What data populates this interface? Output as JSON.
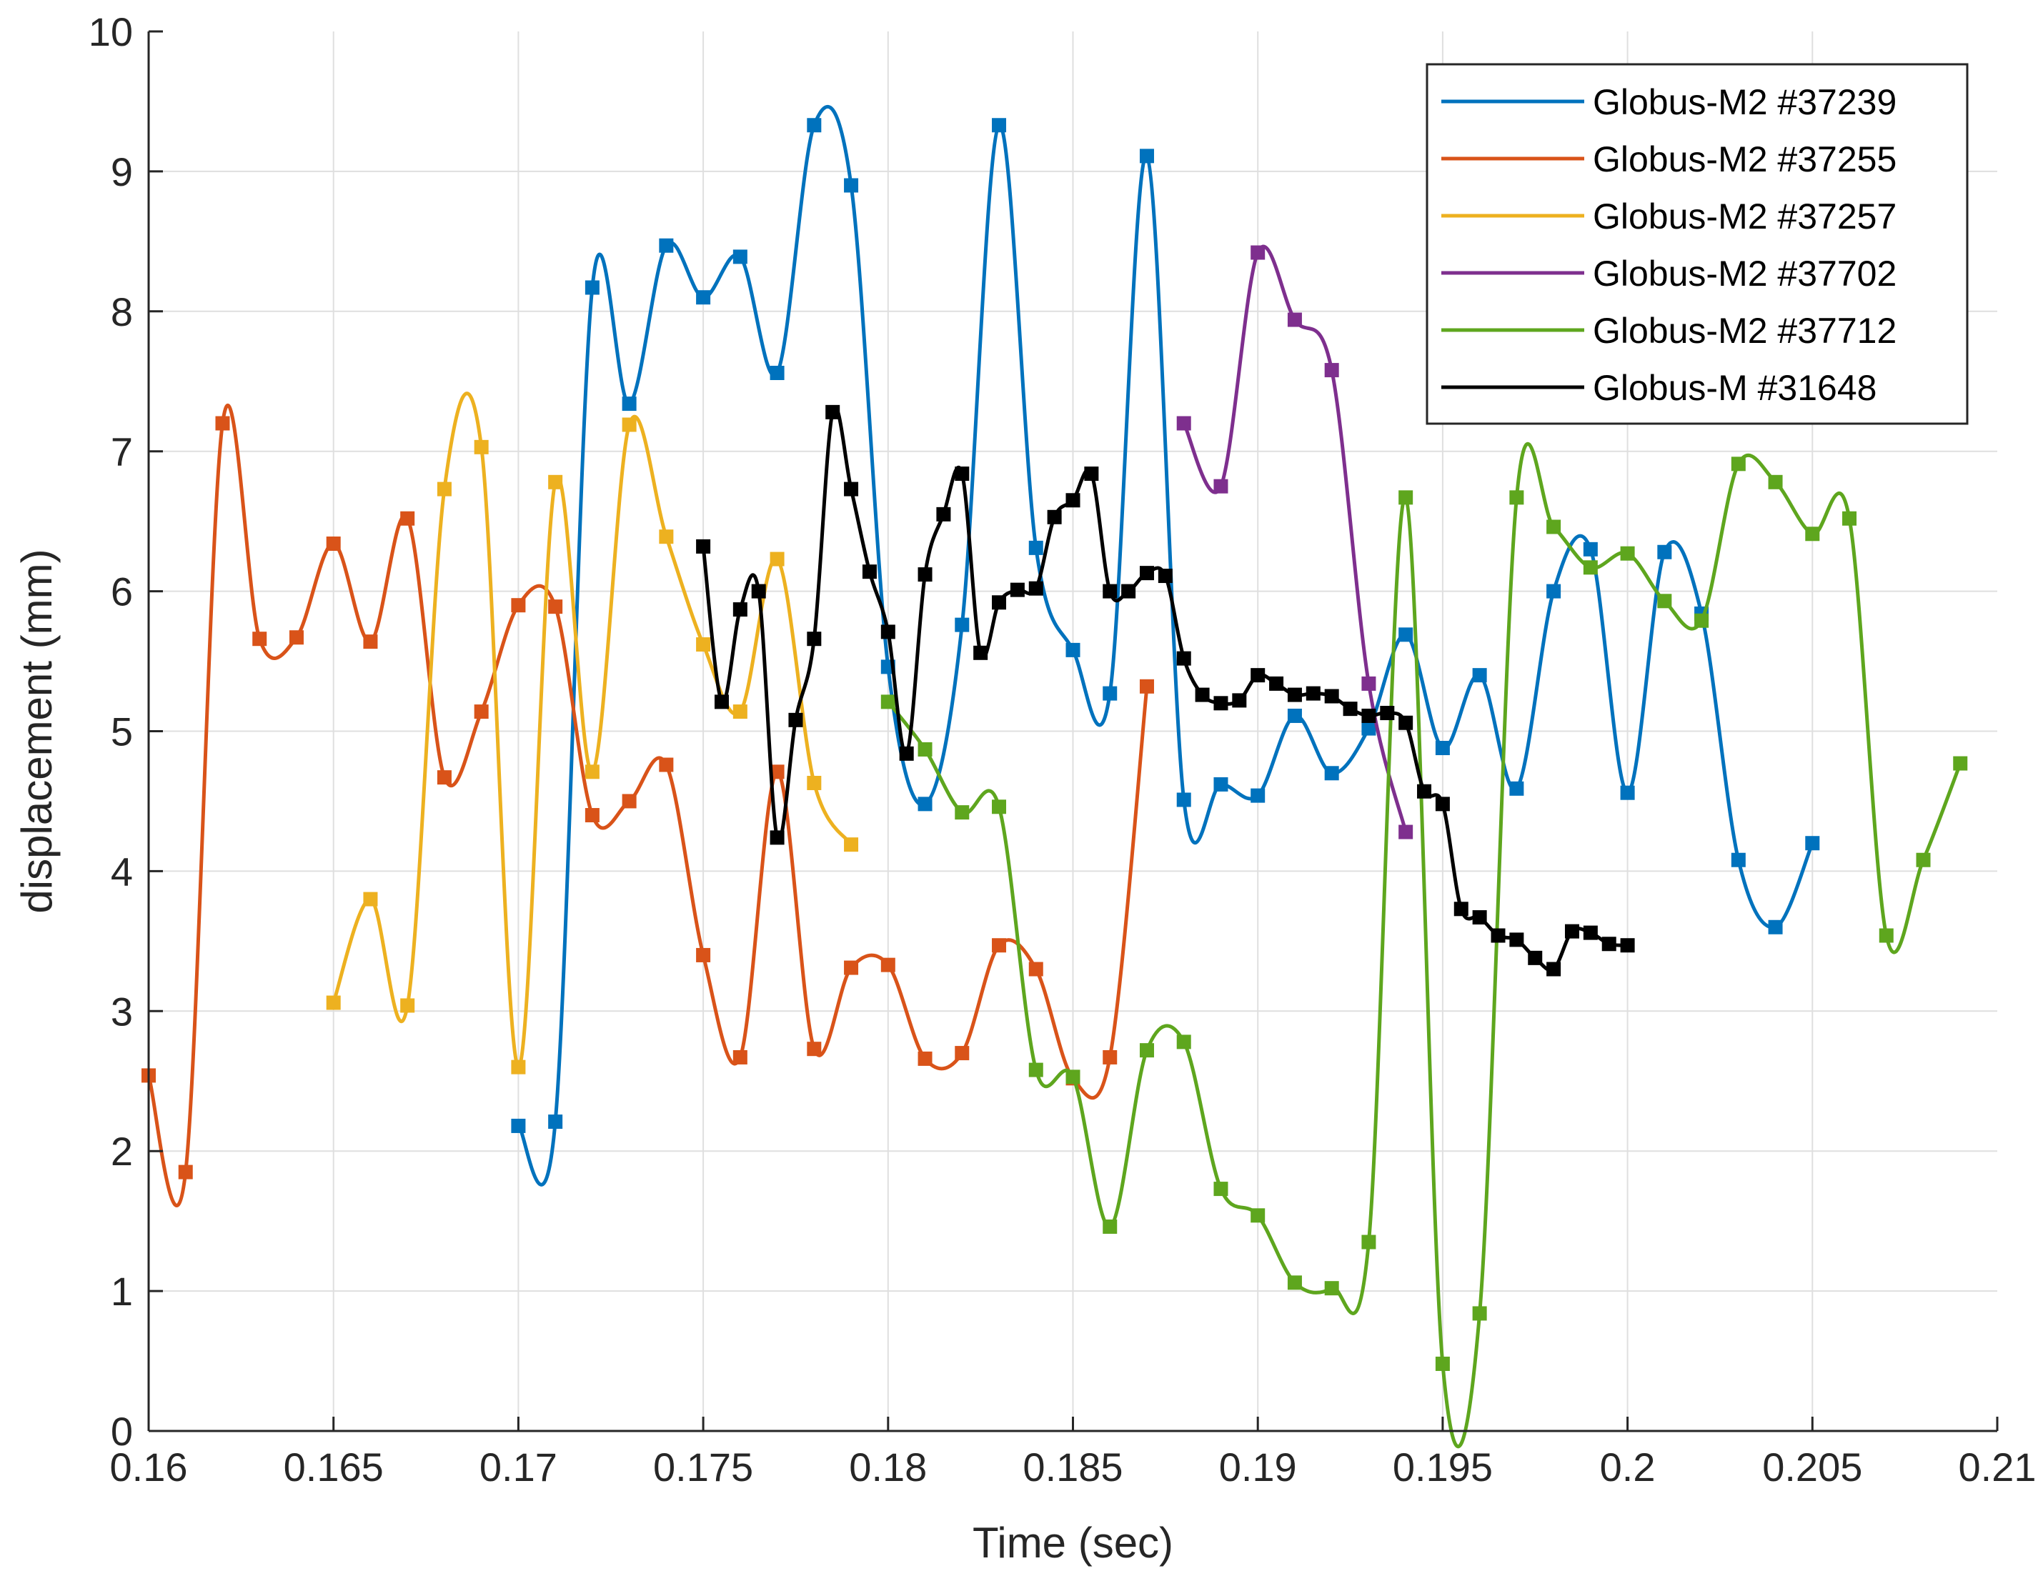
{
  "chart_data": {
    "type": "line",
    "xlabel": "Time (sec)",
    "ylabel": "displacement (mm)",
    "xlim": [
      0.16,
      0.21
    ],
    "ylim": [
      0,
      10
    ],
    "xticks": [
      0.16,
      0.165,
      0.17,
      0.175,
      0.18,
      0.185,
      0.19,
      0.195,
      0.2,
      0.205,
      0.21
    ],
    "xtick_labels": [
      "0.16",
      "0.165",
      "0.17",
      "0.175",
      "0.18",
      "0.185",
      "0.19",
      "0.195",
      "0.2",
      "0.205",
      "0.21"
    ],
    "yticks": [
      0,
      1,
      2,
      3,
      4,
      5,
      6,
      7,
      8,
      9,
      10
    ],
    "ytick_labels": [
      "0",
      "1",
      "2",
      "3",
      "4",
      "5",
      "6",
      "7",
      "8",
      "9",
      "10"
    ],
    "grid": true,
    "legend_position": "top-right",
    "marker": "square",
    "series": [
      {
        "name": "Globus-M2 #37239",
        "color": "#0072BD",
        "x": [
          0.17,
          0.171,
          0.172,
          0.173,
          0.174,
          0.175,
          0.176,
          0.177,
          0.178,
          0.179,
          0.18,
          0.181,
          0.182,
          0.183,
          0.184,
          0.185,
          0.186,
          0.187,
          0.188,
          0.189,
          0.19,
          0.191,
          0.192,
          0.193,
          0.194,
          0.195,
          0.196,
          0.197,
          0.198,
          0.199,
          0.2,
          0.201,
          0.202,
          0.203,
          0.204,
          0.205
        ],
        "y": [
          2.18,
          2.21,
          8.17,
          7.34,
          8.47,
          8.1,
          8.39,
          7.56,
          9.33,
          8.9,
          5.46,
          4.48,
          5.76,
          9.33,
          6.31,
          5.58,
          5.27,
          9.11,
          4.51,
          4.62,
          4.54,
          5.11,
          4.7,
          5.02,
          5.69,
          4.88,
          5.4,
          4.59,
          6.0,
          6.3,
          4.56,
          6.28,
          5.84,
          4.08,
          3.6,
          4.2
        ]
      },
      {
        "name": "Globus-M2 #37255",
        "color": "#D95319",
        "x": [
          0.16,
          0.161,
          0.162,
          0.163,
          0.164,
          0.165,
          0.166,
          0.167,
          0.168,
          0.169,
          0.17,
          0.171,
          0.172,
          0.173,
          0.174,
          0.175,
          0.176,
          0.177,
          0.178,
          0.179,
          0.18,
          0.181,
          0.182,
          0.183,
          0.184,
          0.185,
          0.186,
          0.187
        ],
        "y": [
          2.54,
          1.85,
          7.2,
          5.66,
          5.67,
          6.34,
          5.64,
          6.52,
          4.67,
          5.14,
          5.9,
          5.89,
          4.4,
          4.5,
          4.76,
          3.4,
          2.67,
          4.71,
          2.73,
          3.31,
          3.33,
          2.66,
          2.7,
          3.47,
          3.3,
          2.52,
          2.67,
          5.32
        ]
      },
      {
        "name": "Globus-M2 #37257",
        "color": "#EDB120",
        "x": [
          0.165,
          0.166,
          0.167,
          0.168,
          0.169,
          0.17,
          0.171,
          0.172,
          0.173,
          0.174,
          0.175,
          0.176,
          0.177,
          0.178,
          0.179
        ],
        "y": [
          3.06,
          3.8,
          3.04,
          6.73,
          7.03,
          2.6,
          6.78,
          4.71,
          7.19,
          6.39,
          5.62,
          5.14,
          6.23,
          4.63,
          4.19
        ]
      },
      {
        "name": "Globus-M2 #37702",
        "color": "#7E2F8E",
        "x": [
          0.188,
          0.189,
          0.19,
          0.191,
          0.192,
          0.193,
          0.194
        ],
        "y": [
          7.2,
          6.75,
          8.42,
          7.94,
          7.58,
          5.34,
          4.28
        ]
      },
      {
        "name": "Globus-M2 #37712",
        "color": "#5EA61E",
        "x": [
          0.18,
          0.181,
          0.182,
          0.183,
          0.184,
          0.185,
          0.186,
          0.187,
          0.188,
          0.189,
          0.19,
          0.191,
          0.192,
          0.193,
          0.194,
          0.195,
          0.196,
          0.197,
          0.198,
          0.199,
          0.2,
          0.201,
          0.202,
          0.203,
          0.204,
          0.205,
          0.206,
          0.207,
          0.208,
          0.209
        ],
        "y": [
          5.21,
          4.87,
          4.42,
          4.46,
          2.58,
          2.53,
          1.46,
          2.72,
          2.78,
          1.73,
          1.54,
          1.06,
          1.02,
          1.35,
          6.67,
          0.48,
          0.84,
          6.67,
          6.46,
          6.17,
          6.27,
          5.93,
          5.79,
          6.91,
          6.78,
          6.41,
          6.52,
          3.54,
          4.08,
          4.77
        ]
      },
      {
        "name": "Globus-M #31648",
        "color": "#000000",
        "x": [
          0.175,
          0.1755,
          0.176,
          0.1765,
          0.177,
          0.1775,
          0.178,
          0.1785,
          0.179,
          0.1795,
          0.18,
          0.1805,
          0.181,
          0.1815,
          0.182,
          0.1825,
          0.183,
          0.1835,
          0.184,
          0.1845,
          0.185,
          0.1855,
          0.186,
          0.1865,
          0.187,
          0.1875,
          0.188,
          0.1885,
          0.189,
          0.1895,
          0.19,
          0.1905,
          0.191,
          0.1915,
          0.192,
          0.1925,
          0.193,
          0.1935,
          0.194,
          0.1945,
          0.195,
          0.1955,
          0.196,
          0.1965,
          0.197,
          0.1975,
          0.198,
          0.1985,
          0.199,
          0.1995,
          0.2
        ],
        "y": [
          6.32,
          5.21,
          5.87,
          6.0,
          4.24,
          5.08,
          5.66,
          7.28,
          6.73,
          6.14,
          5.71,
          4.84,
          6.12,
          6.55,
          6.84,
          5.56,
          5.92,
          6.01,
          6.02,
          6.53,
          6.65,
          6.84,
          6.0,
          6.0,
          6.13,
          6.11,
          5.52,
          5.26,
          5.2,
          5.22,
          5.4,
          5.34,
          5.26,
          5.27,
          5.25,
          5.16,
          5.11,
          5.13,
          5.06,
          4.57,
          4.48,
          3.73,
          3.67,
          3.54,
          3.51,
          3.38,
          3.3,
          3.57,
          3.56,
          3.48,
          3.47
        ]
      }
    ]
  }
}
